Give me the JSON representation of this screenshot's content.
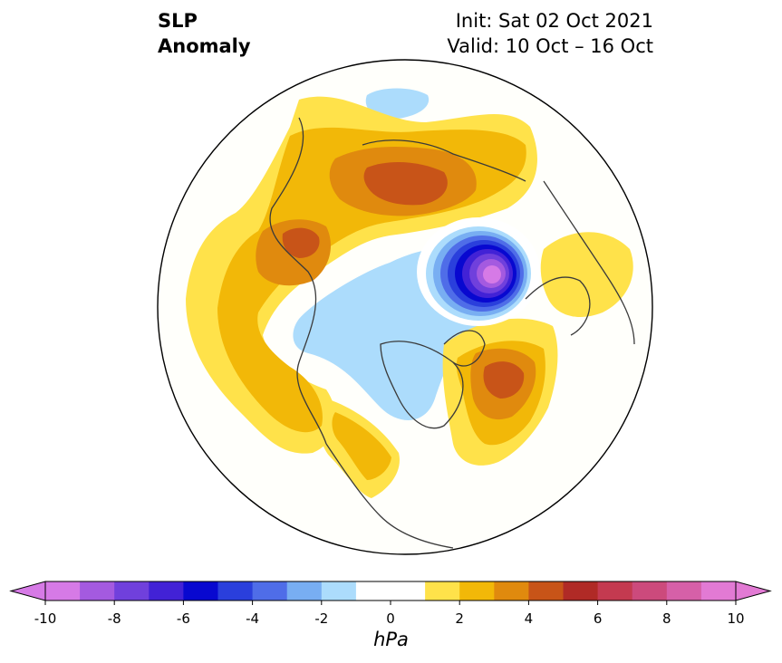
{
  "header": {
    "title_line1": "SLP",
    "title_line2": "Anomaly",
    "init": "Init: Sat 02 Oct 2021",
    "valid": "Valid: 10 Oct – 16 Oct"
  },
  "colorbar": {
    "unit": "hPa",
    "ticks": [
      "-10",
      "-8",
      "-6",
      "-4",
      "-2",
      "0",
      "2",
      "4",
      "6",
      "8",
      "10"
    ],
    "bounds": [
      -10,
      10
    ],
    "colors": [
      "#d67ae6",
      "#a45ae0",
      "#7040dc",
      "#4222d6",
      "#0808d0",
      "#2a3fdc",
      "#4f6de8",
      "#78aef2",
      "#acdcfc",
      "#ffffff",
      "#ffffff",
      "#ffe24a",
      "#f2b808",
      "#e08a0e",
      "#c85418",
      "#b02a26",
      "#c43a50",
      "#cc4a7c",
      "#d660a8",
      "#e27ad4"
    ],
    "under_color": "#d67ae6",
    "over_color": "#e27ad4"
  }
}
